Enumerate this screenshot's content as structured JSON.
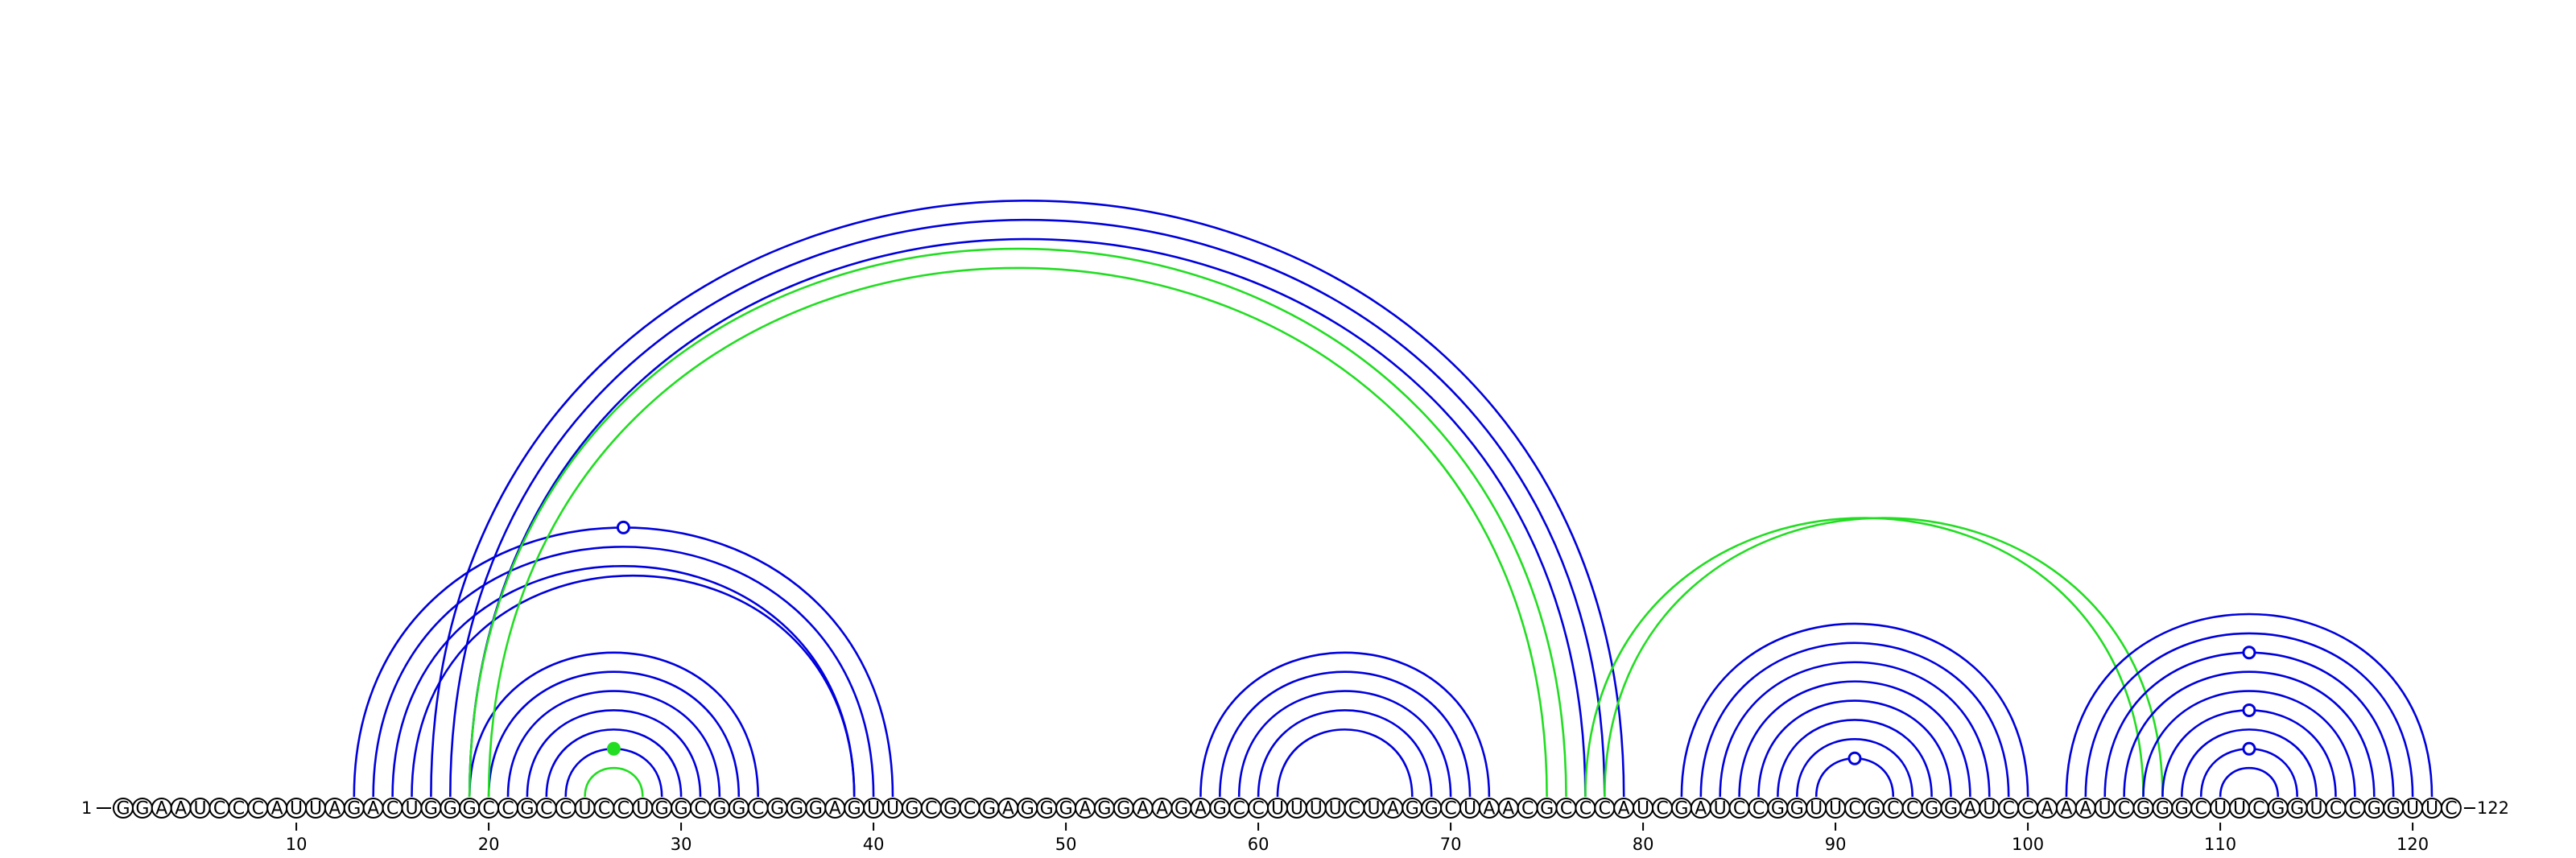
{
  "diagram": {
    "sequence": "GGAAUCCCAUUAGACUGGGCCGCCUCCUGGCGGCGGGAGUUGCGCGAGGGAGGAAGAGCCUUUUCUAGGCUAACGCCCAUCGAUCCGGUUCGCCGGAUCCAAAUCGGGCUUCGGUCCGGUUC",
    "start_label": "1",
    "end_label": "122",
    "tick_positions": [
      10,
      20,
      30,
      40,
      50,
      60,
      70,
      80,
      90,
      100,
      110,
      120
    ],
    "colors": {
      "blue": "#0000dd",
      "green": "#22dd22",
      "outline": "#000000"
    },
    "arc_groups": [
      {
        "color": "green",
        "pairs": [
          [
            25,
            28
          ]
        ]
      },
      {
        "color": "blue",
        "pairs": [
          [
            24,
            29
          ],
          [
            23,
            30
          ],
          [
            22,
            31
          ],
          [
            21,
            32
          ],
          [
            20,
            33
          ],
          [
            19,
            34
          ]
        ]
      },
      {
        "color": "blue",
        "pairs": [
          [
            13,
            41
          ],
          [
            14,
            40
          ],
          [
            15,
            39
          ],
          [
            16,
            39
          ]
        ]
      },
      {
        "color": "blue",
        "pairs": [
          [
            17,
            79
          ],
          [
            18,
            78
          ],
          [
            19,
            77
          ]
        ]
      },
      {
        "color": "green",
        "pairs": [
          [
            19,
            76
          ],
          [
            20,
            75
          ]
        ]
      },
      {
        "color": "blue",
        "pairs": [
          [
            57,
            72
          ],
          [
            58,
            71
          ],
          [
            59,
            70
          ],
          [
            60,
            69
          ],
          [
            61,
            68
          ]
        ]
      },
      {
        "color": "green",
        "pairs": [
          [
            77,
            106
          ],
          [
            78,
            107
          ]
        ]
      },
      {
        "color": "blue",
        "pairs": [
          [
            82,
            100
          ],
          [
            83,
            99
          ],
          [
            84,
            98
          ],
          [
            85,
            97
          ],
          [
            86,
            96
          ],
          [
            87,
            95
          ],
          [
            88,
            94
          ],
          [
            89,
            93
          ]
        ]
      },
      {
        "color": "blue",
        "pairs": [
          [
            102,
            121
          ],
          [
            103,
            120
          ],
          [
            104,
            119
          ],
          [
            105,
            118
          ],
          [
            106,
            117
          ],
          [
            107,
            116
          ],
          [
            108,
            115
          ],
          [
            109,
            114
          ],
          [
            110,
            113
          ]
        ]
      }
    ],
    "markers": [
      {
        "position": 26.5,
        "peak_of": [
          24,
          29
        ],
        "color": "green",
        "filled": true
      },
      {
        "position": 27,
        "peak_of": [
          13,
          41
        ],
        "color": "blue",
        "filled": false
      },
      {
        "position": 91,
        "peak_of": [
          89,
          93
        ],
        "color": "blue",
        "filled": false
      },
      {
        "position": 111.5,
        "peak_of": [
          109,
          114
        ],
        "color": "blue",
        "filled": false
      },
      {
        "position": 111.5,
        "peak_of": [
          107,
          116
        ],
        "color": "blue",
        "filled": false
      },
      {
        "position": 111.5,
        "peak_of": [
          104,
          119
        ],
        "color": "blue",
        "filled": false
      }
    ]
  }
}
